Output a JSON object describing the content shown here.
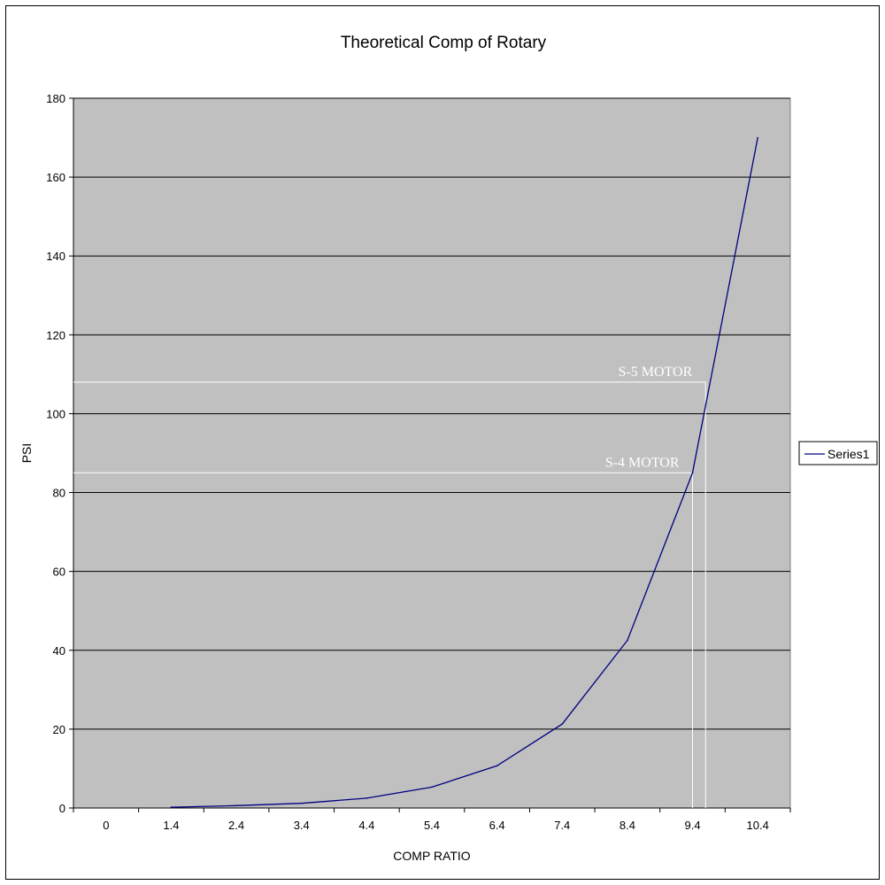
{
  "chart_data": {
    "type": "line",
    "title": "Theoretical Comp of Rotary",
    "xlabel": "COMP RATIO",
    "ylabel": "PSI",
    "categories": [
      "0",
      "1.4",
      "2.4",
      "3.4",
      "4.4",
      "5.4",
      "6.4",
      "7.4",
      "8.4",
      "9.4",
      "10.4"
    ],
    "ylim": [
      0,
      180
    ],
    "yticks": [
      0,
      20,
      40,
      60,
      80,
      100,
      120,
      140,
      160,
      180
    ],
    "grid": true,
    "legend_position": "right",
    "series": [
      {
        "name": "Series1",
        "color": "#000080",
        "values": [
          null,
          0.2,
          0.6,
          1.2,
          2.5,
          5.3,
          10.7,
          21.3,
          42.5,
          85,
          170
        ]
      }
    ],
    "annotations": [
      {
        "label": "S-5 MOTOR",
        "y": 108,
        "x": 9.6
      },
      {
        "label": "S-4 MOTOR",
        "y": 85,
        "x": 9.4
      }
    ],
    "colors": {
      "plot_background": "#c0c0c0",
      "gridline": "#000000",
      "annotation_line": "#ffffff",
      "series": "#000080"
    }
  }
}
